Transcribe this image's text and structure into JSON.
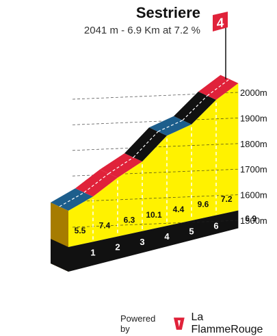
{
  "header": {
    "title": "Sestriere",
    "subtitle": "2041 m - 6.9 Km at 7.2 %",
    "category": "4"
  },
  "footer": {
    "powered_by": "Powered by",
    "brand": "La FlammeRouge"
  },
  "chart_data": {
    "type": "area",
    "title": "Sestriere",
    "x_unit": "km",
    "y_unit": "m",
    "total_distance": "6.9",
    "x_ticks": [
      "1",
      "2",
      "3",
      "4",
      "5",
      "6"
    ],
    "y_ticks": [
      "1500m",
      "1600m",
      "1700m",
      "1800m",
      "1900m",
      "2000m"
    ],
    "ylim": [
      1550,
      2041
    ],
    "segments": [
      {
        "from_km": 0,
        "to_km": 1,
        "gradient": "5.5",
        "color": "#1d5e8c"
      },
      {
        "from_km": 1,
        "to_km": 2,
        "gradient": "7.4",
        "color": "#e0223a"
      },
      {
        "from_km": 2,
        "to_km": 3,
        "gradient": "6.3",
        "color": "#e0223a"
      },
      {
        "from_km": 3,
        "to_km": 4,
        "gradient": "10.1",
        "color": "#111111"
      },
      {
        "from_km": 4,
        "to_km": 5,
        "gradient": "4.4",
        "color": "#1d5e8c"
      },
      {
        "from_km": 5,
        "to_km": 6,
        "gradient": "9.6",
        "color": "#111111"
      },
      {
        "from_km": 6,
        "to_km": 6.9,
        "gradient": "7.2",
        "color": "#e0223a"
      }
    ],
    "colors": {
      "fill": "#fff200",
      "base": "#111111",
      "side": "#a67c00",
      "flag": "#e0223a"
    }
  }
}
